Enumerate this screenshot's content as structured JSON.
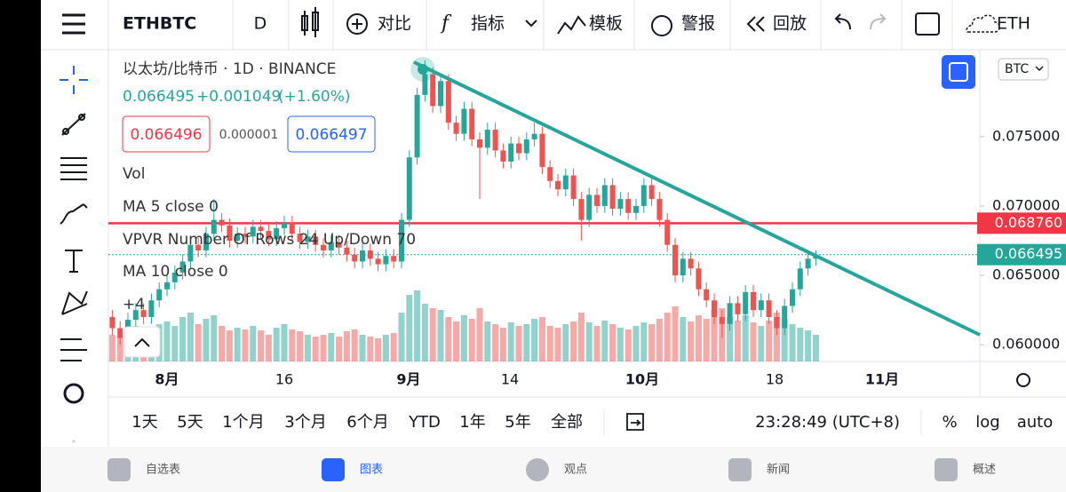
{
  "toolbar": {
    "symbol": "ETHBTC",
    "interval": "D",
    "compare": "对比",
    "indicators": "指标",
    "templates": "模板",
    "alerts": "警报",
    "replay": "回放",
    "account": "ETH"
  },
  "chart_data": {
    "type": "candlestick",
    "title": "以太坊/比特币 · 1D · BINANCE",
    "last": "0.066495",
    "change": "+0.001049",
    "change_pct": "(+1.60%)",
    "bid": "0.066496",
    "spread": "0.000001",
    "ask": "0.066497",
    "indicators": [
      "Vol",
      "MA 5 close 0",
      "VPVR Number Of Rows 24 Up/Down 70",
      "MA 10 close 0",
      "+4"
    ],
    "currency": "BTC",
    "up_color": "#26a69a",
    "down_color": "#ef5350",
    "grid": false,
    "ylim": [
      0.0588,
      0.081
    ],
    "yticks": [
      {
        "value": 0.075,
        "label": "0.075000"
      },
      {
        "value": 0.07,
        "label": "0.070000"
      },
      {
        "value": 0.065,
        "label": "0.065000"
      },
      {
        "value": 0.06,
        "label": "0.060000"
      }
    ],
    "xticks": [
      "8月",
      "16",
      "9月",
      "14",
      "10月",
      "18",
      "11月"
    ],
    "price_lines": [
      {
        "value": 0.06876,
        "label": "0.068760",
        "color": "#f23645"
      },
      {
        "value": 0.066495,
        "label": "0.066495",
        "color": "#26a69a"
      }
    ],
    "candles": {
      "open": [
        0.062,
        0.0612,
        0.0605,
        0.0618,
        0.0625,
        0.062,
        0.0632,
        0.064,
        0.0645,
        0.0652,
        0.066,
        0.0672,
        0.0668,
        0.068,
        0.069,
        0.0686,
        0.0675,
        0.068,
        0.0678,
        0.0685,
        0.0682,
        0.0676,
        0.0684,
        0.0688,
        0.068,
        0.0674,
        0.0678,
        0.0672,
        0.0668,
        0.0674,
        0.067,
        0.0665,
        0.066,
        0.0668,
        0.0662,
        0.0658,
        0.0664,
        0.066,
        0.069,
        0.0735,
        0.078,
        0.0795,
        0.0772,
        0.079,
        0.076,
        0.0752,
        0.077,
        0.0748,
        0.0742,
        0.0755,
        0.074,
        0.0732,
        0.0745,
        0.0738,
        0.0748,
        0.0752,
        0.0728,
        0.0718,
        0.0712,
        0.0722,
        0.0705,
        0.069,
        0.0708,
        0.07,
        0.0715,
        0.0698,
        0.0705,
        0.0695,
        0.07,
        0.0715,
        0.0705,
        0.069,
        0.0672,
        0.065,
        0.0662,
        0.0655,
        0.064,
        0.0632,
        0.062,
        0.0615,
        0.063,
        0.0622,
        0.0638,
        0.0625,
        0.0632,
        0.062,
        0.0612,
        0.0628,
        0.064,
        0.0655,
        0.0662
      ],
      "high": [
        0.0625,
        0.0617,
        0.0623,
        0.063,
        0.063,
        0.0637,
        0.0645,
        0.065,
        0.0657,
        0.0665,
        0.0677,
        0.0677,
        0.0685,
        0.0705,
        0.0695,
        0.0691,
        0.0685,
        0.0685,
        0.069,
        0.069,
        0.0687,
        0.0689,
        0.0693,
        0.0693,
        0.0685,
        0.0683,
        0.0683,
        0.0677,
        0.0679,
        0.0679,
        0.0675,
        0.067,
        0.0673,
        0.0673,
        0.0667,
        0.0669,
        0.0669,
        0.0695,
        0.074,
        0.0785,
        0.0805,
        0.08,
        0.0795,
        0.0795,
        0.0765,
        0.0775,
        0.0775,
        0.0753,
        0.076,
        0.076,
        0.0745,
        0.075,
        0.075,
        0.0753,
        0.076,
        0.0757,
        0.0733,
        0.0723,
        0.0727,
        0.0727,
        0.071,
        0.0713,
        0.0713,
        0.072,
        0.072,
        0.071,
        0.071,
        0.0705,
        0.072,
        0.072,
        0.071,
        0.0695,
        0.0677,
        0.0667,
        0.0667,
        0.066,
        0.0645,
        0.0637,
        0.0625,
        0.0635,
        0.0635,
        0.0643,
        0.0643,
        0.0637,
        0.0637,
        0.0625,
        0.0633,
        0.0645,
        0.066,
        0.0667,
        0.0668
      ],
      "low": [
        0.0607,
        0.06,
        0.06,
        0.0613,
        0.0615,
        0.0615,
        0.0627,
        0.0635,
        0.064,
        0.0647,
        0.0655,
        0.0663,
        0.0663,
        0.0675,
        0.0681,
        0.067,
        0.067,
        0.0673,
        0.0673,
        0.0677,
        0.0671,
        0.0671,
        0.0679,
        0.0675,
        0.0669,
        0.0669,
        0.0667,
        0.0663,
        0.0663,
        0.0665,
        0.066,
        0.0655,
        0.0655,
        0.0657,
        0.0653,
        0.0653,
        0.0655,
        0.0655,
        0.0685,
        0.073,
        0.0775,
        0.0767,
        0.0767,
        0.0755,
        0.0747,
        0.0747,
        0.0743,
        0.0705,
        0.0737,
        0.0735,
        0.0727,
        0.0727,
        0.0733,
        0.0733,
        0.0743,
        0.0723,
        0.0713,
        0.0707,
        0.0707,
        0.07,
        0.0675,
        0.0685,
        0.0695,
        0.0695,
        0.0693,
        0.0693,
        0.069,
        0.069,
        0.0695,
        0.07,
        0.0685,
        0.0667,
        0.0645,
        0.0645,
        0.065,
        0.0635,
        0.0627,
        0.0615,
        0.0605,
        0.061,
        0.0617,
        0.0617,
        0.062,
        0.062,
        0.0615,
        0.0607,
        0.0607,
        0.0623,
        0.0635,
        0.065,
        0.0657
      ],
      "close": [
        0.0612,
        0.0605,
        0.0618,
        0.0625,
        0.062,
        0.0632,
        0.064,
        0.0645,
        0.0652,
        0.066,
        0.0672,
        0.0668,
        0.068,
        0.069,
        0.0686,
        0.0675,
        0.068,
        0.0678,
        0.0685,
        0.0682,
        0.0676,
        0.0684,
        0.0688,
        0.068,
        0.0674,
        0.0678,
        0.0672,
        0.0668,
        0.0674,
        0.067,
        0.0665,
        0.066,
        0.0668,
        0.0662,
        0.0658,
        0.0664,
        0.066,
        0.069,
        0.0735,
        0.078,
        0.0795,
        0.0772,
        0.079,
        0.076,
        0.0752,
        0.077,
        0.0748,
        0.0742,
        0.0755,
        0.074,
        0.0732,
        0.0745,
        0.0738,
        0.0748,
        0.0752,
        0.0728,
        0.0718,
        0.0712,
        0.0722,
        0.0705,
        0.069,
        0.0708,
        0.07,
        0.0715,
        0.0698,
        0.0705,
        0.0695,
        0.07,
        0.0715,
        0.0705,
        0.069,
        0.0672,
        0.065,
        0.0662,
        0.0655,
        0.064,
        0.0632,
        0.062,
        0.0615,
        0.063,
        0.0622,
        0.0638,
        0.0625,
        0.0632,
        0.062,
        0.0612,
        0.0628,
        0.064,
        0.0655,
        0.0662,
        0.0665
      ]
    },
    "volume": [
      30,
      28,
      35,
      40,
      30,
      38,
      42,
      45,
      40,
      50,
      55,
      42,
      48,
      52,
      40,
      35,
      38,
      36,
      40,
      35,
      30,
      38,
      42,
      36,
      34,
      30,
      28,
      30,
      32,
      28,
      34,
      36,
      30,
      28,
      26,
      30,
      32,
      55,
      75,
      80,
      65,
      60,
      58,
      50,
      45,
      52,
      48,
      60,
      45,
      42,
      38,
      44,
      40,
      42,
      48,
      50,
      40,
      38,
      42,
      45,
      55,
      44,
      40,
      46,
      42,
      38,
      36,
      40,
      44,
      42,
      48,
      55,
      62,
      50,
      45,
      52,
      48,
      58,
      60,
      50,
      46,
      52,
      44,
      40,
      46,
      55,
      48,
      42,
      38,
      35,
      30
    ]
  },
  "range_bar": {
    "ranges": [
      "1天",
      "5天",
      "1个月",
      "3个月",
      "6个月",
      "YTD",
      "1年",
      "5年",
      "全部"
    ],
    "time": "23:28:49 (UTC+8)",
    "percent": "%",
    "log": "log",
    "auto": "auto"
  },
  "nav": [
    "自选表",
    "图表",
    "观点",
    "新闻",
    "概述"
  ]
}
